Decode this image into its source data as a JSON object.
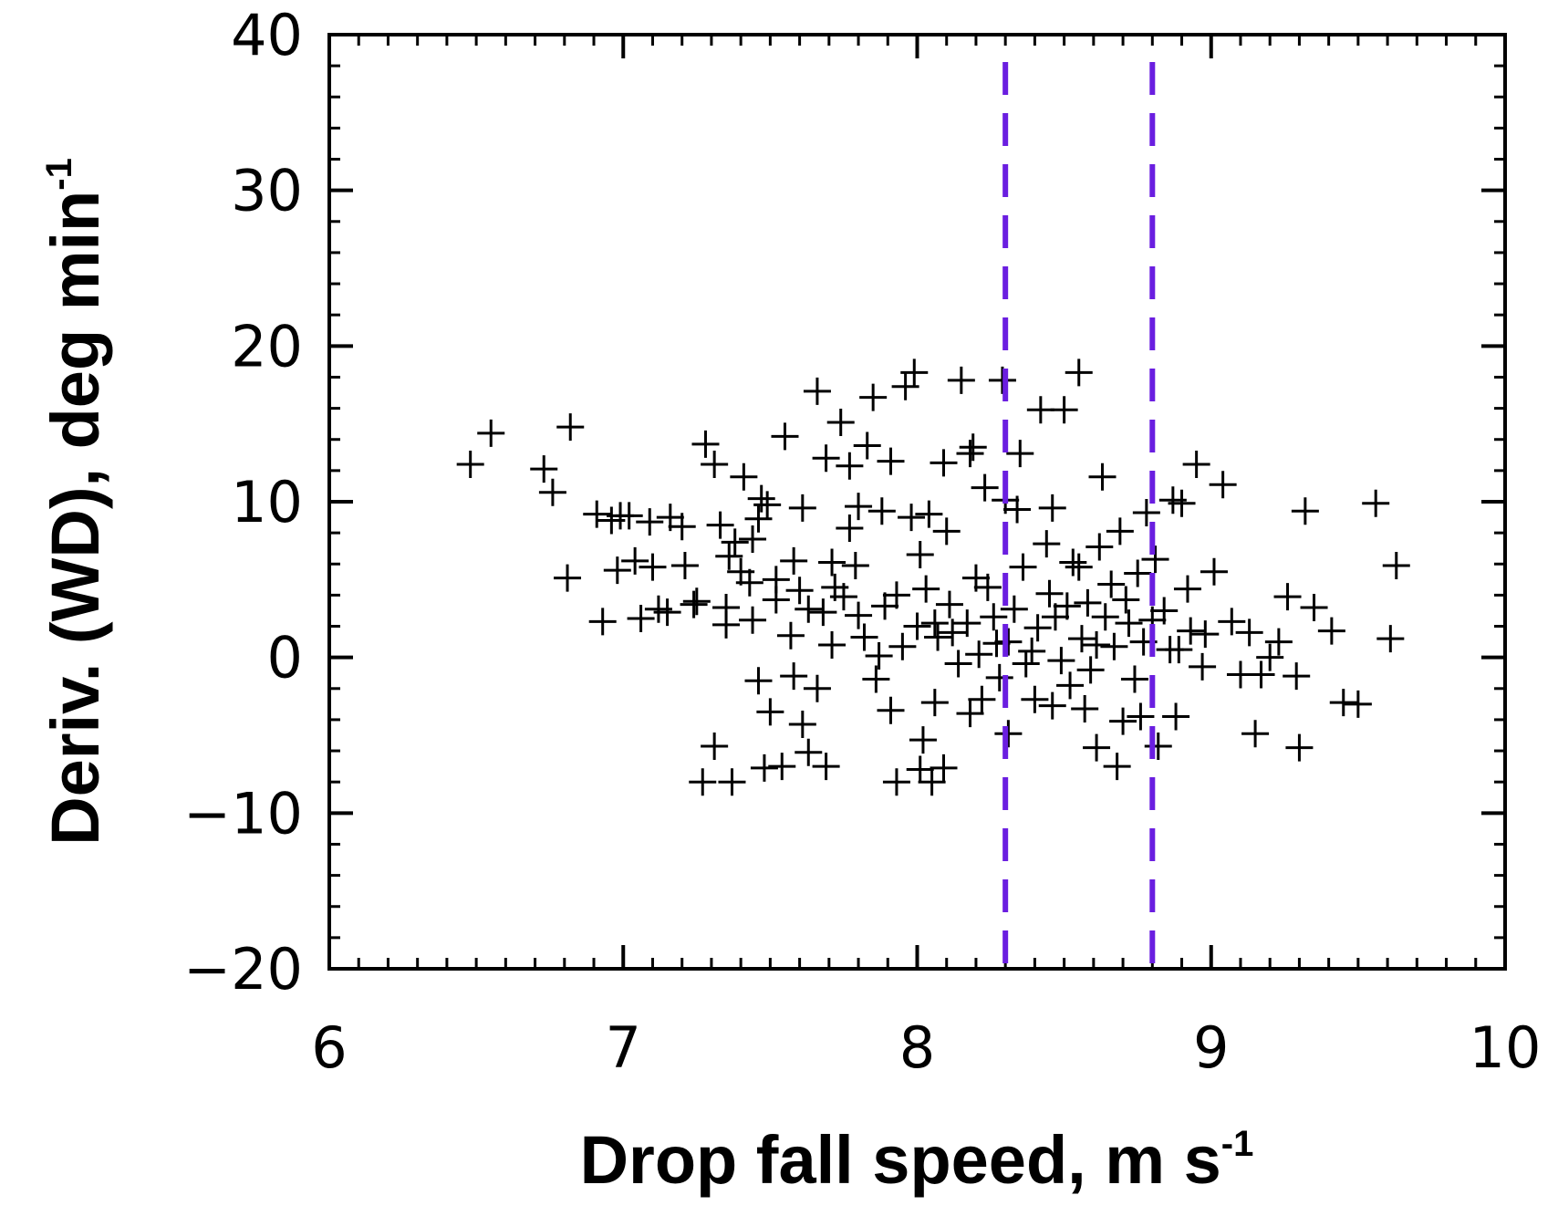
{
  "chart_data": {
    "type": "scatter",
    "title": "",
    "xlabel": "Drop fall speed, m s",
    "xlabel_sup": "-1",
    "ylabel": "Deriv. (WD), deg min",
    "ylabel_sup": "-1",
    "xlim": [
      6,
      10
    ],
    "ylim": [
      -20,
      40
    ],
    "xticks": [
      6,
      7,
      8,
      9,
      10
    ],
    "xtick_labels": [
      "6",
      "7",
      "8",
      "9",
      "10"
    ],
    "yticks": [
      -20,
      -10,
      0,
      10,
      20,
      30,
      40
    ],
    "ytick_labels": [
      "−20",
      "−10",
      "0",
      "10",
      "20",
      "30",
      "40"
    ],
    "x_minor_step": 0.1,
    "y_minor_step": 2,
    "grid": false,
    "marker": "plus",
    "marker_color": "#000000",
    "reference_lines": {
      "orientation": "vertical",
      "style": "dashed",
      "color": "#6a1ee0",
      "x": [
        8.3,
        8.8
      ]
    },
    "series": [
      {
        "points": [
          [
            6.48,
            12.4
          ],
          [
            6.55,
            14.4
          ],
          [
            6.73,
            12.1
          ],
          [
            6.76,
            10.6
          ],
          [
            6.82,
            14.8
          ],
          [
            6.81,
            5.1
          ],
          [
            6.91,
            9.2
          ],
          [
            6.93,
            2.3
          ],
          [
            6.96,
            8.8
          ],
          [
            6.98,
            5.6
          ],
          [
            7.02,
            9.1
          ],
          [
            7.04,
            6.2
          ],
          [
            7.06,
            2.5
          ],
          [
            7.09,
            8.7
          ],
          [
            7.12,
            3.1
          ],
          [
            7.16,
            9.0
          ],
          [
            7.21,
            5.9
          ],
          [
            7.25,
            3.6
          ],
          [
            7.28,
            13.7
          ],
          [
            7.31,
            12.4
          ],
          [
            7.33,
            8.5
          ],
          [
            7.35,
            2.1
          ],
          [
            7.38,
            7.4
          ],
          [
            7.41,
            11.6
          ],
          [
            7.43,
            4.8
          ],
          [
            7.46,
            8.9
          ],
          [
            7.49,
            9.8
          ],
          [
            7.52,
            3.7
          ],
          [
            7.55,
            14.2
          ],
          [
            7.58,
            6.2
          ],
          [
            7.61,
            9.6
          ],
          [
            7.63,
            3.1
          ],
          [
            7.66,
            17.1
          ],
          [
            7.69,
            12.8
          ],
          [
            7.72,
            4.5
          ],
          [
            7.74,
            15.1
          ],
          [
            7.77,
            8.3
          ],
          [
            7.8,
            2.7
          ],
          [
            7.83,
            13.6
          ],
          [
            7.85,
            16.7
          ],
          [
            7.88,
            9.4
          ],
          [
            7.91,
            12.6
          ],
          [
            7.93,
            4.0
          ],
          [
            7.96,
            17.4
          ],
          [
            7.99,
            18.3
          ],
          [
            8.01,
            6.6
          ],
          [
            8.04,
            9.2
          ],
          [
            8.06,
            2.2
          ],
          [
            8.09,
            12.5
          ],
          [
            8.12,
            1.6
          ],
          [
            8.15,
            17.8
          ],
          [
            8.18,
            13.1
          ],
          [
            8.2,
            5.1
          ],
          [
            8.23,
            10.9
          ],
          [
            8.26,
            2.6
          ],
          [
            8.29,
            17.8
          ],
          [
            8.31,
            1.0
          ],
          [
            8.34,
            9.5
          ],
          [
            8.36,
            5.8
          ],
          [
            8.39,
            0.4
          ],
          [
            8.42,
            15.9
          ],
          [
            8.44,
            7.3
          ],
          [
            8.47,
            2.6
          ],
          [
            8.5,
            15.9
          ],
          [
            8.53,
            6.1
          ],
          [
            8.55,
            18.3
          ],
          [
            8.58,
            3.5
          ],
          [
            8.61,
            0.8
          ],
          [
            8.63,
            11.6
          ],
          [
            8.66,
            4.7
          ],
          [
            8.69,
            8.1
          ],
          [
            8.72,
            2.2
          ],
          [
            8.75,
            5.4
          ],
          [
            8.78,
            9.3
          ],
          [
            8.81,
            6.3
          ],
          [
            8.84,
            3.0
          ],
          [
            8.87,
            10.1
          ],
          [
            8.89,
            0.5
          ],
          [
            8.92,
            4.4
          ],
          [
            8.95,
            12.4
          ],
          [
            8.98,
            1.5
          ],
          [
            9.01,
            5.5
          ],
          [
            9.04,
            11.1
          ],
          [
            9.07,
            2.3
          ],
          [
            9.1,
            -1.1
          ],
          [
            9.13,
            1.6
          ],
          [
            9.17,
            -1.1
          ],
          [
            9.2,
            0.0
          ],
          [
            9.23,
            1.0
          ],
          [
            9.26,
            3.9
          ],
          [
            9.29,
            -1.2
          ],
          [
            9.32,
            9.4
          ],
          [
            9.35,
            3.2
          ],
          [
            9.41,
            1.7
          ],
          [
            9.45,
            -2.9
          ],
          [
            9.5,
            -3.0
          ],
          [
            9.56,
            9.9
          ],
          [
            9.63,
            5.9
          ],
          [
            9.61,
            1.2
          ],
          [
            7.27,
            -8.0
          ],
          [
            7.31,
            -5.7
          ],
          [
            7.37,
            -8.0
          ],
          [
            7.48,
            -7.1
          ],
          [
            7.54,
            -7.0
          ],
          [
            7.63,
            -6.1
          ],
          [
            7.69,
            -7.0
          ],
          [
            7.61,
            -4.3
          ],
          [
            7.5,
            -3.5
          ],
          [
            7.46,
            -1.5
          ],
          [
            7.58,
            -1.2
          ],
          [
            7.66,
            -2.0
          ],
          [
            7.93,
            -8.0
          ],
          [
            8.01,
            -7.2
          ],
          [
            8.05,
            -8.0
          ],
          [
            8.09,
            -7.1
          ],
          [
            8.02,
            -5.3
          ],
          [
            7.91,
            -3.4
          ],
          [
            7.86,
            -1.4
          ],
          [
            8.06,
            -2.9
          ],
          [
            8.18,
            -3.6
          ],
          [
            8.22,
            -2.7
          ],
          [
            8.28,
            -1.3
          ],
          [
            8.31,
            -4.9
          ],
          [
            8.4,
            -2.7
          ],
          [
            8.46,
            -3.1
          ],
          [
            8.52,
            -1.8
          ],
          [
            8.57,
            -3.3
          ],
          [
            8.61,
            -5.8
          ],
          [
            8.68,
            -7.0
          ],
          [
            8.7,
            -4.1
          ],
          [
            8.76,
            -3.8
          ],
          [
            8.82,
            -5.7
          ],
          [
            8.88,
            -3.8
          ],
          [
            9.15,
            -4.9
          ],
          [
            9.3,
            -5.8
          ],
          [
            7.35,
            3.2
          ],
          [
            7.4,
            5.5
          ],
          [
            7.44,
            2.4
          ],
          [
            7.52,
            5.0
          ],
          [
            7.57,
            1.4
          ],
          [
            7.6,
            4.3
          ],
          [
            7.68,
            2.9
          ],
          [
            7.71,
            0.8
          ],
          [
            7.75,
            3.9
          ],
          [
            7.79,
            5.9
          ],
          [
            7.82,
            1.3
          ],
          [
            7.87,
            0.1
          ],
          [
            7.89,
            3.3
          ],
          [
            7.95,
            0.7
          ],
          [
            8.0,
            2.0
          ],
          [
            8.03,
            4.4
          ],
          [
            8.07,
            1.3
          ],
          [
            8.11,
            3.4
          ],
          [
            8.14,
            -0.4
          ],
          [
            8.17,
            2.2
          ],
          [
            8.21,
            0.2
          ],
          [
            8.24,
            4.5
          ],
          [
            8.27,
            0.9
          ],
          [
            8.33,
            3.1
          ],
          [
            8.37,
            -0.4
          ],
          [
            8.41,
            1.9
          ],
          [
            8.45,
            4.1
          ],
          [
            8.49,
            -0.2
          ],
          [
            8.51,
            3.3
          ],
          [
            8.56,
            1.2
          ],
          [
            8.59,
            -0.8
          ],
          [
            8.64,
            2.6
          ],
          [
            8.67,
            0.7
          ],
          [
            8.71,
            3.7
          ],
          [
            8.74,
            -1.4
          ],
          [
            8.77,
            1.0
          ],
          [
            8.8,
            2.4
          ],
          [
            8.86,
            0.5
          ],
          [
            8.93,
            1.7
          ],
          [
            8.97,
            -0.6
          ],
          [
            7.2,
            8.4
          ],
          [
            7.24,
            3.4
          ],
          [
            7.15,
            2.9
          ],
          [
            7.1,
            5.8
          ],
          [
            6.99,
            9.1
          ],
          [
            7.36,
            6.5
          ],
          [
            7.44,
            7.6
          ],
          [
            7.47,
            10.2
          ],
          [
            7.71,
            6.1
          ],
          [
            7.8,
            9.7
          ],
          [
            7.98,
            9.0
          ],
          [
            8.1,
            8.1
          ],
          [
            8.3,
            10.1
          ],
          [
            8.46,
            9.6
          ],
          [
            8.55,
            5.8
          ],
          [
            8.62,
            7.1
          ],
          [
            8.9,
            9.9
          ],
          [
            8.35,
            13.1
          ],
          [
            8.19,
            13.5
          ],
          [
            7.77,
            12.3
          ]
        ]
      }
    ]
  }
}
